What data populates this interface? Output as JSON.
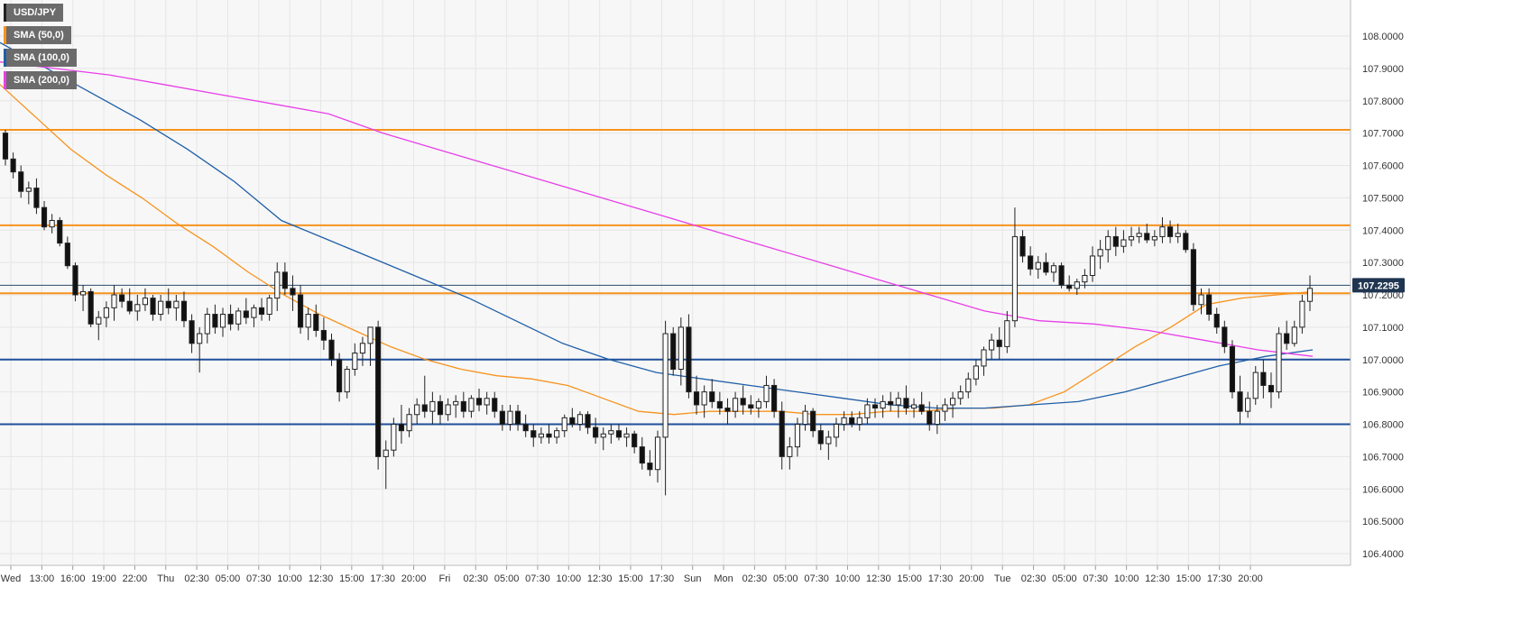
{
  "legend": [
    {
      "label": "USD/JPY",
      "color": "#222222"
    },
    {
      "label": "SMA (50,0)",
      "color": "#f7931e"
    },
    {
      "label": "SMA (100,0)",
      "color": "#1f5fa8"
    },
    {
      "label": "SMA (200,0)",
      "color": "#e83fe8"
    }
  ],
  "current_price_label": "107.2295",
  "chart_data": {
    "type": "candlestick",
    "symbol": "USD/JPY",
    "y_ticks": [
      106.4,
      106.5,
      106.6,
      106.7,
      106.8,
      106.9,
      107.0,
      107.1,
      107.2,
      107.3,
      107.4,
      107.5,
      107.6,
      107.7,
      107.8,
      107.9,
      108.0
    ],
    "y_tick_labels": [
      "106.4000",
      "106.5000",
      "106.6000",
      "106.7000",
      "106.8000",
      "106.9000",
      "107.0000",
      "107.1000",
      "107.2000",
      "107.3000",
      "107.4000",
      "107.5000",
      "107.6000",
      "107.7000",
      "107.8000",
      "107.9000",
      "108.0000"
    ],
    "ylim": [
      106.35,
      108.1
    ],
    "x_labels": [
      "Wed",
      "13:00",
      "16:00",
      "19:00",
      "22:00",
      "Thu",
      "02:30",
      "05:00",
      "07:30",
      "10:00",
      "12:30",
      "15:00",
      "17:30",
      "20:00",
      "Fri",
      "02:30",
      "05:00",
      "07:30",
      "10:00",
      "12:30",
      "15:00",
      "17:30",
      "Sun",
      "Mon",
      "02:30",
      "05:00",
      "07:30",
      "10:00",
      "12:30",
      "15:00",
      "17:30",
      "20:00",
      "Tue",
      "02:30",
      "05:00",
      "07:30",
      "10:00",
      "12:30",
      "15:00",
      "17:30",
      "20:00"
    ],
    "current_price": 107.2295,
    "resistance_levels": [
      107.71,
      107.415,
      107.205
    ],
    "support_levels": [
      107.0,
      106.8
    ],
    "sma_series": [
      {
        "name": "SMA (50,0)",
        "color": "#f7931e",
        "values": [
          107.85,
          107.75,
          107.65,
          107.57,
          107.5,
          107.42,
          107.35,
          107.27,
          107.2,
          107.14,
          107.09,
          107.04,
          107.0,
          106.97,
          106.95,
          106.94,
          106.92,
          106.88,
          106.84,
          106.83,
          106.84,
          106.84,
          106.84,
          106.83,
          106.83,
          106.84,
          106.84,
          106.85,
          106.85,
          106.86,
          106.9,
          106.97,
          107.04,
          107.1,
          107.17,
          107.19,
          107.2,
          107.21
        ]
      },
      {
        "name": "SMA (100,0)",
        "color": "#1f5fa8",
        "values": [
          107.98,
          107.9,
          107.82,
          107.74,
          107.65,
          107.55,
          107.43,
          107.37,
          107.31,
          107.25,
          107.19,
          107.12,
          107.05,
          107.0,
          106.96,
          106.94,
          106.92,
          106.9,
          106.88,
          106.86,
          106.85,
          106.85,
          106.86,
          106.87,
          106.9,
          106.94,
          106.98,
          107.01,
          107.03
        ]
      },
      {
        "name": "SMA (200,0)",
        "color": "#e83fe8",
        "values": [
          107.92,
          107.9,
          107.88,
          107.85,
          107.82,
          107.79,
          107.76,
          107.7,
          107.65,
          107.6,
          107.55,
          107.5,
          107.45,
          107.4,
          107.35,
          107.3,
          107.25,
          107.2,
          107.15,
          107.12,
          107.11,
          107.09,
          107.06,
          107.03,
          107.01
        ]
      },
      {
        "name": "",
        "color": "#f7931e",
        "values": []
      }
    ],
    "candles": [
      [
        107.7,
        107.71,
        107.6,
        107.62
      ],
      [
        107.62,
        107.64,
        107.56,
        107.58
      ],
      [
        107.58,
        107.6,
        107.5,
        107.52
      ],
      [
        107.52,
        107.55,
        107.48,
        107.53
      ],
      [
        107.53,
        107.56,
        107.45,
        107.47
      ],
      [
        107.47,
        107.49,
        107.4,
        107.41
      ],
      [
        107.41,
        107.45,
        107.39,
        107.43
      ],
      [
        107.43,
        107.44,
        107.35,
        107.36
      ],
      [
        107.36,
        107.38,
        107.28,
        107.29
      ],
      [
        107.29,
        107.3,
        107.18,
        107.2
      ],
      [
        107.2,
        107.23,
        107.15,
        107.21
      ],
      [
        107.21,
        107.22,
        107.1,
        107.11
      ],
      [
        107.11,
        107.15,
        107.06,
        107.13
      ],
      [
        107.13,
        107.18,
        107.1,
        107.16
      ],
      [
        107.16,
        107.23,
        107.12,
        107.2
      ],
      [
        107.2,
        107.22,
        107.16,
        107.18
      ],
      [
        107.18,
        107.22,
        107.14,
        107.15
      ],
      [
        107.15,
        107.2,
        107.12,
        107.17
      ],
      [
        107.17,
        107.22,
        107.15,
        107.19
      ],
      [
        107.19,
        107.2,
        107.12,
        107.14
      ],
      [
        107.14,
        107.2,
        107.12,
        107.18
      ],
      [
        107.18,
        107.22,
        107.14,
        107.16
      ],
      [
        107.16,
        107.2,
        107.12,
        107.18
      ],
      [
        107.18,
        107.21,
        107.1,
        107.12
      ],
      [
        107.12,
        107.14,
        107.02,
        107.05
      ],
      [
        107.05,
        107.1,
        106.96,
        107.08
      ],
      [
        107.08,
        107.16,
        107.05,
        107.14
      ],
      [
        107.14,
        107.17,
        107.08,
        107.1
      ],
      [
        107.1,
        107.16,
        107.07,
        107.14
      ],
      [
        107.14,
        107.17,
        107.09,
        107.11
      ],
      [
        107.11,
        107.16,
        107.09,
        107.15
      ],
      [
        107.15,
        107.19,
        107.11,
        107.13
      ],
      [
        107.13,
        107.17,
        107.1,
        107.16
      ],
      [
        107.16,
        107.19,
        107.12,
        107.14
      ],
      [
        107.14,
        107.2,
        107.12,
        107.19
      ],
      [
        107.19,
        107.3,
        107.15,
        107.27
      ],
      [
        107.27,
        107.3,
        107.2,
        107.22
      ],
      [
        107.22,
        107.26,
        107.15,
        107.2
      ],
      [
        107.2,
        107.23,
        107.08,
        107.1
      ],
      [
        107.1,
        107.16,
        107.06,
        107.14
      ],
      [
        107.14,
        107.17,
        107.07,
        107.09
      ],
      [
        107.09,
        107.13,
        107.03,
        107.06
      ],
      [
        107.06,
        107.08,
        106.98,
        107.0
      ],
      [
        107.0,
        107.02,
        106.87,
        106.9
      ],
      [
        106.9,
        106.98,
        106.88,
        106.97
      ],
      [
        106.97,
        107.05,
        106.95,
        107.02
      ],
      [
        107.02,
        107.07,
        106.98,
        107.05
      ],
      [
        107.05,
        107.1,
        106.98,
        107.1
      ],
      [
        107.1,
        107.12,
        106.66,
        106.7
      ],
      [
        106.7,
        106.75,
        106.6,
        106.72
      ],
      [
        106.72,
        106.82,
        106.7,
        106.8
      ],
      [
        106.8,
        106.86,
        106.74,
        106.78
      ],
      [
        106.78,
        106.85,
        106.76,
        106.83
      ],
      [
        106.83,
        106.88,
        106.8,
        106.86
      ],
      [
        106.86,
        106.95,
        106.82,
        106.84
      ],
      [
        106.84,
        106.9,
        106.8,
        106.87
      ],
      [
        106.87,
        106.89,
        106.8,
        106.83
      ],
      [
        106.83,
        106.88,
        106.81,
        106.86
      ],
      [
        106.86,
        106.89,
        106.82,
        106.87
      ],
      [
        106.87,
        106.9,
        106.82,
        106.84
      ],
      [
        106.84,
        106.89,
        106.82,
        106.88
      ],
      [
        106.88,
        106.91,
        106.84,
        106.86
      ],
      [
        106.86,
        106.9,
        106.83,
        106.88
      ],
      [
        106.88,
        106.9,
        106.82,
        106.84
      ],
      [
        106.84,
        106.86,
        106.78,
        106.8
      ],
      [
        106.8,
        106.86,
        106.78,
        106.84
      ],
      [
        106.84,
        106.86,
        106.78,
        106.8
      ],
      [
        106.8,
        106.83,
        106.76,
        106.78
      ],
      [
        106.78,
        106.8,
        106.73,
        106.76
      ],
      [
        106.76,
        106.79,
        106.74,
        106.77
      ],
      [
        106.77,
        106.8,
        106.74,
        106.76
      ],
      [
        106.76,
        106.79,
        106.74,
        106.78
      ],
      [
        106.78,
        106.83,
        106.76,
        106.82
      ],
      [
        106.82,
        106.85,
        106.79,
        106.8
      ],
      [
        106.8,
        106.84,
        106.78,
        106.83
      ],
      [
        106.83,
        106.84,
        106.77,
        106.79
      ],
      [
        106.79,
        106.82,
        106.74,
        106.76
      ],
      [
        106.76,
        106.79,
        106.72,
        106.77
      ],
      [
        106.77,
        106.8,
        106.74,
        106.78
      ],
      [
        106.78,
        106.8,
        106.75,
        106.76
      ],
      [
        106.76,
        106.79,
        106.73,
        106.77
      ],
      [
        106.77,
        106.78,
        106.71,
        106.73
      ],
      [
        106.73,
        106.76,
        106.66,
        106.68
      ],
      [
        106.68,
        106.72,
        106.64,
        106.66
      ],
      [
        106.66,
        106.78,
        106.62,
        106.76
      ],
      [
        106.76,
        107.12,
        106.58,
        107.08
      ],
      [
        107.08,
        107.1,
        106.95,
        106.97
      ],
      [
        106.97,
        107.13,
        106.92,
        107.1
      ],
      [
        107.1,
        107.14,
        106.88,
        106.9
      ],
      [
        106.9,
        106.95,
        106.83,
        106.86
      ],
      [
        106.86,
        106.92,
        106.82,
        106.9
      ],
      [
        106.9,
        106.94,
        106.85,
        106.87
      ],
      [
        106.87,
        106.9,
        106.83,
        106.85
      ],
      [
        106.85,
        106.88,
        106.8,
        106.84
      ],
      [
        106.84,
        106.9,
        106.82,
        106.88
      ],
      [
        106.88,
        106.92,
        106.83,
        106.86
      ],
      [
        106.86,
        106.89,
        106.83,
        106.85
      ],
      [
        106.85,
        106.88,
        106.82,
        106.87
      ],
      [
        106.87,
        106.95,
        106.85,
        106.92
      ],
      [
        106.92,
        106.94,
        106.82,
        106.84
      ],
      [
        106.84,
        106.87,
        106.66,
        106.7
      ],
      [
        106.7,
        106.76,
        106.66,
        106.73
      ],
      [
        106.73,
        106.82,
        106.7,
        106.8
      ],
      [
        106.8,
        106.86,
        106.78,
        106.84
      ],
      [
        106.84,
        106.85,
        106.76,
        106.78
      ],
      [
        106.78,
        106.8,
        106.72,
        106.74
      ],
      [
        106.74,
        106.78,
        106.69,
        106.76
      ],
      [
        106.76,
        106.82,
        106.73,
        106.8
      ],
      [
        106.8,
        106.84,
        106.78,
        106.82
      ],
      [
        106.82,
        106.84,
        106.79,
        106.8
      ],
      [
        106.8,
        106.84,
        106.78,
        106.82
      ],
      [
        106.82,
        106.88,
        106.8,
        106.86
      ],
      [
        106.86,
        106.88,
        106.82,
        106.85
      ],
      [
        106.85,
        106.89,
        106.82,
        106.87
      ],
      [
        106.87,
        106.9,
        106.84,
        106.86
      ],
      [
        106.86,
        106.9,
        106.82,
        106.88
      ],
      [
        106.88,
        106.92,
        106.83,
        106.85
      ],
      [
        106.85,
        106.88,
        106.82,
        106.86
      ],
      [
        106.86,
        106.9,
        106.83,
        106.84
      ],
      [
        106.84,
        106.87,
        106.78,
        106.8
      ],
      [
        106.8,
        106.86,
        106.77,
        106.84
      ],
      [
        106.84,
        106.88,
        106.81,
        106.86
      ],
      [
        106.86,
        106.9,
        106.82,
        106.88
      ],
      [
        106.88,
        106.92,
        106.86,
        106.9
      ],
      [
        106.9,
        106.96,
        106.88,
        106.94
      ],
      [
        106.94,
        107.0,
        106.92,
        106.98
      ],
      [
        106.98,
        107.04,
        106.95,
        107.03
      ],
      [
        107.03,
        107.08,
        107.0,
        107.06
      ],
      [
        107.06,
        107.1,
        107.0,
        107.04
      ],
      [
        107.04,
        107.15,
        107.02,
        107.12
      ],
      [
        107.12,
        107.47,
        107.1,
        107.38
      ],
      [
        107.38,
        107.4,
        107.3,
        107.32
      ],
      [
        107.32,
        107.35,
        107.26,
        107.28
      ],
      [
        107.28,
        107.32,
        107.25,
        107.3
      ],
      [
        107.3,
        107.33,
        107.26,
        107.27
      ],
      [
        107.27,
        107.3,
        107.24,
        107.29
      ],
      [
        107.29,
        107.3,
        107.22,
        107.23
      ],
      [
        107.23,
        107.26,
        107.21,
        107.22
      ],
      [
        107.22,
        107.25,
        107.2,
        107.24
      ],
      [
        107.24,
        107.28,
        107.22,
        107.26
      ],
      [
        107.26,
        107.35,
        107.24,
        107.32
      ],
      [
        107.32,
        107.37,
        107.28,
        107.34
      ],
      [
        107.34,
        107.4,
        107.3,
        107.38
      ],
      [
        107.38,
        107.41,
        107.32,
        107.35
      ],
      [
        107.35,
        107.4,
        107.33,
        107.37
      ],
      [
        107.37,
        107.41,
        107.35,
        107.38
      ],
      [
        107.38,
        107.41,
        107.36,
        107.39
      ],
      [
        107.39,
        107.42,
        107.36,
        107.37
      ],
      [
        107.37,
        107.4,
        107.35,
        107.38
      ],
      [
        107.38,
        107.44,
        107.36,
        107.41
      ],
      [
        107.41,
        107.43,
        107.36,
        107.38
      ],
      [
        107.38,
        107.42,
        107.36,
        107.39
      ],
      [
        107.39,
        107.4,
        107.33,
        107.34
      ],
      [
        107.34,
        107.36,
        107.15,
        107.17
      ],
      [
        107.17,
        107.22,
        107.14,
        107.2
      ],
      [
        107.2,
        107.22,
        107.12,
        107.14
      ],
      [
        107.14,
        107.16,
        107.08,
        107.1
      ],
      [
        107.1,
        107.12,
        107.02,
        107.04
      ],
      [
        107.04,
        107.06,
        106.88,
        106.9
      ],
      [
        106.9,
        106.95,
        106.8,
        106.84
      ],
      [
        106.84,
        106.9,
        106.82,
        106.88
      ],
      [
        106.88,
        106.98,
        106.86,
        106.96
      ],
      [
        106.96,
        107.0,
        106.88,
        106.92
      ],
      [
        106.92,
        106.96,
        106.85,
        106.9
      ],
      [
        106.9,
        107.1,
        106.88,
        107.08
      ],
      [
        107.08,
        107.12,
        107.03,
        107.05
      ],
      [
        107.05,
        107.12,
        107.04,
        107.1
      ],
      [
        107.1,
        107.2,
        107.08,
        107.18
      ],
      [
        107.18,
        107.26,
        107.15,
        107.22
      ]
    ]
  }
}
